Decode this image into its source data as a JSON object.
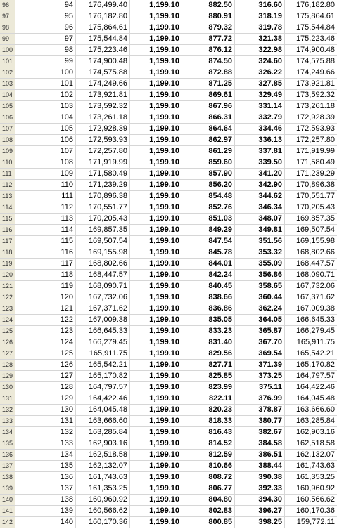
{
  "spreadsheet": {
    "rows": [
      {
        "row": "96",
        "cells": [
          "94",
          "176,499.40",
          "1,199.10",
          "882.50",
          "316.60",
          "176,182.80"
        ]
      },
      {
        "row": "97",
        "cells": [
          "95",
          "176,182.80",
          "1,199.10",
          "880.91",
          "318.19",
          "175,864.61"
        ]
      },
      {
        "row": "98",
        "cells": [
          "96",
          "175,864.61",
          "1,199.10",
          "879.32",
          "319.78",
          "175,544.84"
        ]
      },
      {
        "row": "99",
        "cells": [
          "97",
          "175,544.84",
          "1,199.10",
          "877.72",
          "321.38",
          "175,223.46"
        ]
      },
      {
        "row": "100",
        "cells": [
          "98",
          "175,223.46",
          "1,199.10",
          "876.12",
          "322.98",
          "174,900.48"
        ]
      },
      {
        "row": "101",
        "cells": [
          "99",
          "174,900.48",
          "1,199.10",
          "874.50",
          "324.60",
          "174,575.88"
        ]
      },
      {
        "row": "102",
        "cells": [
          "100",
          "174,575.88",
          "1,199.10",
          "872.88",
          "326.22",
          "174,249.66"
        ]
      },
      {
        "row": "103",
        "cells": [
          "101",
          "174,249.66",
          "1,199.10",
          "871.25",
          "327.85",
          "173,921.81"
        ]
      },
      {
        "row": "104",
        "cells": [
          "102",
          "173,921.81",
          "1,199.10",
          "869.61",
          "329.49",
          "173,592.32"
        ]
      },
      {
        "row": "105",
        "cells": [
          "103",
          "173,592.32",
          "1,199.10",
          "867.96",
          "331.14",
          "173,261.18"
        ]
      },
      {
        "row": "106",
        "cells": [
          "104",
          "173,261.18",
          "1,199.10",
          "866.31",
          "332.79",
          "172,928.39"
        ]
      },
      {
        "row": "107",
        "cells": [
          "105",
          "172,928.39",
          "1,199.10",
          "864.64",
          "334.46",
          "172,593.93"
        ]
      },
      {
        "row": "108",
        "cells": [
          "106",
          "172,593.93",
          "1,199.10",
          "862.97",
          "336.13",
          "172,257.80"
        ]
      },
      {
        "row": "109",
        "cells": [
          "107",
          "172,257.80",
          "1,199.10",
          "861.29",
          "337.81",
          "171,919.99"
        ]
      },
      {
        "row": "110",
        "cells": [
          "108",
          "171,919.99",
          "1,199.10",
          "859.60",
          "339.50",
          "171,580.49"
        ]
      },
      {
        "row": "111",
        "cells": [
          "109",
          "171,580.49",
          "1,199.10",
          "857.90",
          "341.20",
          "171,239.29"
        ]
      },
      {
        "row": "112",
        "cells": [
          "110",
          "171,239.29",
          "1,199.10",
          "856.20",
          "342.90",
          "170,896.38"
        ]
      },
      {
        "row": "113",
        "cells": [
          "111",
          "170,896.38",
          "1,199.10",
          "854.48",
          "344.62",
          "170,551.77"
        ]
      },
      {
        "row": "114",
        "cells": [
          "112",
          "170,551.77",
          "1,199.10",
          "852.76",
          "346.34",
          "170,205.43"
        ]
      },
      {
        "row": "115",
        "cells": [
          "113",
          "170,205.43",
          "1,199.10",
          "851.03",
          "348.07",
          "169,857.35"
        ]
      },
      {
        "row": "116",
        "cells": [
          "114",
          "169,857.35",
          "1,199.10",
          "849.29",
          "349.81",
          "169,507.54"
        ]
      },
      {
        "row": "117",
        "cells": [
          "115",
          "169,507.54",
          "1,199.10",
          "847.54",
          "351.56",
          "169,155.98"
        ]
      },
      {
        "row": "118",
        "cells": [
          "116",
          "169,155.98",
          "1,199.10",
          "845.78",
          "353.32",
          "168,802.66"
        ]
      },
      {
        "row": "119",
        "cells": [
          "117",
          "168,802.66",
          "1,199.10",
          "844.01",
          "355.09",
          "168,447.57"
        ]
      },
      {
        "row": "120",
        "cells": [
          "118",
          "168,447.57",
          "1,199.10",
          "842.24",
          "356.86",
          "168,090.71"
        ]
      },
      {
        "row": "121",
        "cells": [
          "119",
          "168,090.71",
          "1,199.10",
          "840.45",
          "358.65",
          "167,732.06"
        ]
      },
      {
        "row": "122",
        "cells": [
          "120",
          "167,732.06",
          "1,199.10",
          "838.66",
          "360.44",
          "167,371.62"
        ]
      },
      {
        "row": "123",
        "cells": [
          "121",
          "167,371.62",
          "1,199.10",
          "836.86",
          "362.24",
          "167,009.38"
        ]
      },
      {
        "row": "124",
        "cells": [
          "122",
          "167,009.38",
          "1,199.10",
          "835.05",
          "364.05",
          "166,645.33"
        ]
      },
      {
        "row": "125",
        "cells": [
          "123",
          "166,645.33",
          "1,199.10",
          "833.23",
          "365.87",
          "166,279.45"
        ]
      },
      {
        "row": "126",
        "cells": [
          "124",
          "166,279.45",
          "1,199.10",
          "831.40",
          "367.70",
          "165,911.75"
        ]
      },
      {
        "row": "127",
        "cells": [
          "125",
          "165,911.75",
          "1,199.10",
          "829.56",
          "369.54",
          "165,542.21"
        ]
      },
      {
        "row": "128",
        "cells": [
          "126",
          "165,542.21",
          "1,199.10",
          "827.71",
          "371.39",
          "165,170.82"
        ]
      },
      {
        "row": "129",
        "cells": [
          "127",
          "165,170.82",
          "1,199.10",
          "825.85",
          "373.25",
          "164,797.57"
        ]
      },
      {
        "row": "130",
        "cells": [
          "128",
          "164,797.57",
          "1,199.10",
          "823.99",
          "375.11",
          "164,422.46"
        ]
      },
      {
        "row": "131",
        "cells": [
          "129",
          "164,422.46",
          "1,199.10",
          "822.11",
          "376.99",
          "164,045.48"
        ]
      },
      {
        "row": "132",
        "cells": [
          "130",
          "164,045.48",
          "1,199.10",
          "820.23",
          "378.87",
          "163,666.60"
        ]
      },
      {
        "row": "133",
        "cells": [
          "131",
          "163,666.60",
          "1,199.10",
          "818.33",
          "380.77",
          "163,285.84"
        ]
      },
      {
        "row": "134",
        "cells": [
          "132",
          "163,285.84",
          "1,199.10",
          "816.43",
          "382.67",
          "162,903.16"
        ]
      },
      {
        "row": "135",
        "cells": [
          "133",
          "162,903.16",
          "1,199.10",
          "814.52",
          "384.58",
          "162,518.58"
        ]
      },
      {
        "row": "136",
        "cells": [
          "134",
          "162,518.58",
          "1,199.10",
          "812.59",
          "386.51",
          "162,132.07"
        ]
      },
      {
        "row": "137",
        "cells": [
          "135",
          "162,132.07",
          "1,199.10",
          "810.66",
          "388.44",
          "161,743.63"
        ]
      },
      {
        "row": "138",
        "cells": [
          "136",
          "161,743.63",
          "1,199.10",
          "808.72",
          "390.38",
          "161,353.25"
        ]
      },
      {
        "row": "139",
        "cells": [
          "137",
          "161,353.25",
          "1,199.10",
          "806.77",
          "392.33",
          "160,960.92"
        ]
      },
      {
        "row": "140",
        "cells": [
          "138",
          "160,960.92",
          "1,199.10",
          "804.80",
          "394.30",
          "160,566.62"
        ]
      },
      {
        "row": "141",
        "cells": [
          "139",
          "160,566.62",
          "1,199.10",
          "802.83",
          "396.27",
          "160,170.36"
        ]
      },
      {
        "row": "142",
        "cells": [
          "140",
          "160,170.36",
          "1,199.10",
          "800.85",
          "398.25",
          "159,772.11"
        ]
      }
    ]
  }
}
